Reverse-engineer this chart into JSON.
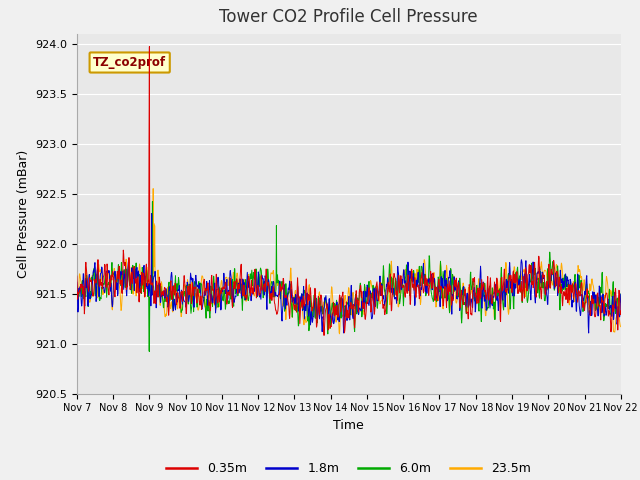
{
  "title": "Tower CO2 Profile Cell Pressure",
  "ylabel": "Cell Pressure (mBar)",
  "xlabel": "Time",
  "ylim": [
    920.5,
    924.1
  ],
  "annotation": "TZ_co2prof",
  "annotation_color": "#8b0000",
  "annotation_bg": "#ffffcc",
  "annotation_border": "#cc9900",
  "series_labels": [
    "0.35m",
    "1.8m",
    "6.0m",
    "23.5m"
  ],
  "series_colors": [
    "#dd0000",
    "#0000cc",
    "#00aa00",
    "#ffaa00"
  ],
  "xtick_labels": [
    "Nov 7",
    "Nov 8",
    "Nov 9",
    "Nov 10",
    "Nov 11",
    "Nov 12",
    "Nov 13",
    "Nov 14",
    "Nov 15",
    "Nov 16",
    "Nov 17",
    "Nov 18",
    "Nov 19",
    "Nov 20",
    "Nov 21",
    "Nov 22"
  ],
  "bg_color": "#f0f0f0",
  "plot_bg": "#e8e8e8",
  "grid_color": "#ffffff",
  "yticks": [
    920.5,
    921.0,
    921.5,
    922.0,
    922.5,
    923.0,
    923.5,
    924.0
  ],
  "title_fontsize": 12,
  "axis_fontsize": 9,
  "tick_fontsize": 8,
  "legend_fontsize": 9,
  "n_days": 15,
  "n_per_day": 96,
  "base_pressure": 921.5,
  "noise_scale": 0.18,
  "spike_day": 2.0,
  "spike_value": 923.97,
  "green_dip_value": 920.92,
  "orange_spike_value": 922.55,
  "blue_spike_value": 922.3
}
